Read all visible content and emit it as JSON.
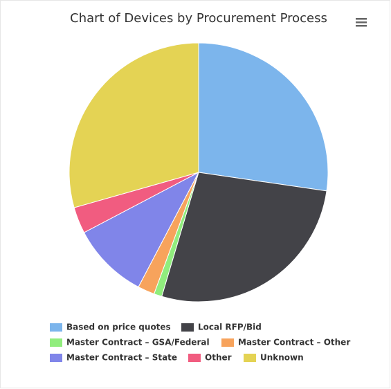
{
  "chart_data": {
    "type": "pie",
    "title": "Chart of Devices by Procurement Process",
    "categories": [
      "Based on price quotes",
      "Local RFP/Bid",
      "Master Contract – GSA/Federal",
      "Master Contract – Other",
      "Master Contract – State",
      "Other",
      "Unknown"
    ],
    "values": [
      27.3,
      27.3,
      1.0,
      2.1,
      9.6,
      3.3,
      29.4
    ],
    "colors": [
      "#7cb5ec",
      "#434348",
      "#90ed7d",
      "#f7a35c",
      "#8085e9",
      "#f15c80",
      "#e4d354"
    ],
    "legend": "bottom"
  }
}
